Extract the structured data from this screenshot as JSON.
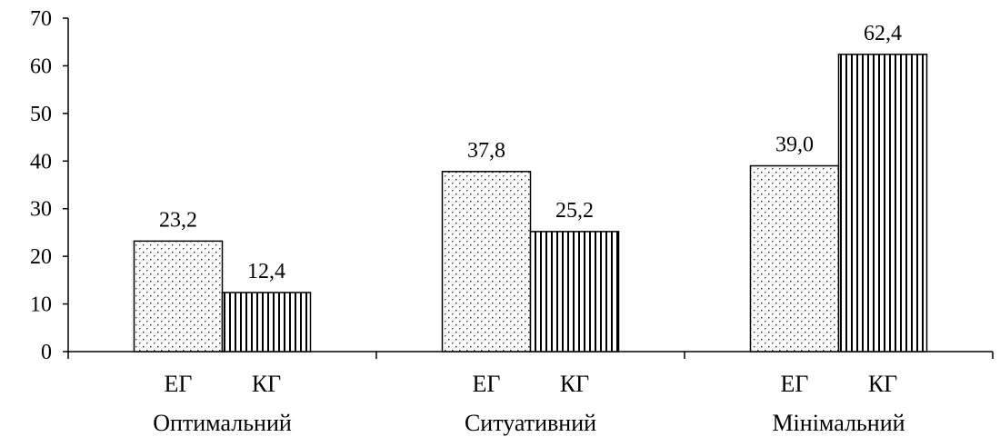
{
  "chart_data": {
    "type": "bar",
    "categories": [
      "Оптимальний",
      "Ситуативний",
      "Мінімальний"
    ],
    "series": [
      {
        "name": "ЕГ",
        "values": [
          23.2,
          37.8,
          39.0
        ],
        "labels": [
          "23,2",
          "37,8",
          "39,0"
        ],
        "pattern": "dots"
      },
      {
        "name": "КГ",
        "values": [
          12.4,
          25.2,
          62.4
        ],
        "labels": [
          "12,4",
          "25,2",
          "62,4"
        ],
        "pattern": "vertical-lines"
      }
    ],
    "title": "",
    "xlabel": "",
    "ylabel": "",
    "ylim": [
      0,
      70
    ],
    "yticks": [
      0,
      10,
      20,
      30,
      40,
      50,
      60,
      70
    ],
    "grid": false,
    "legend": "none"
  }
}
